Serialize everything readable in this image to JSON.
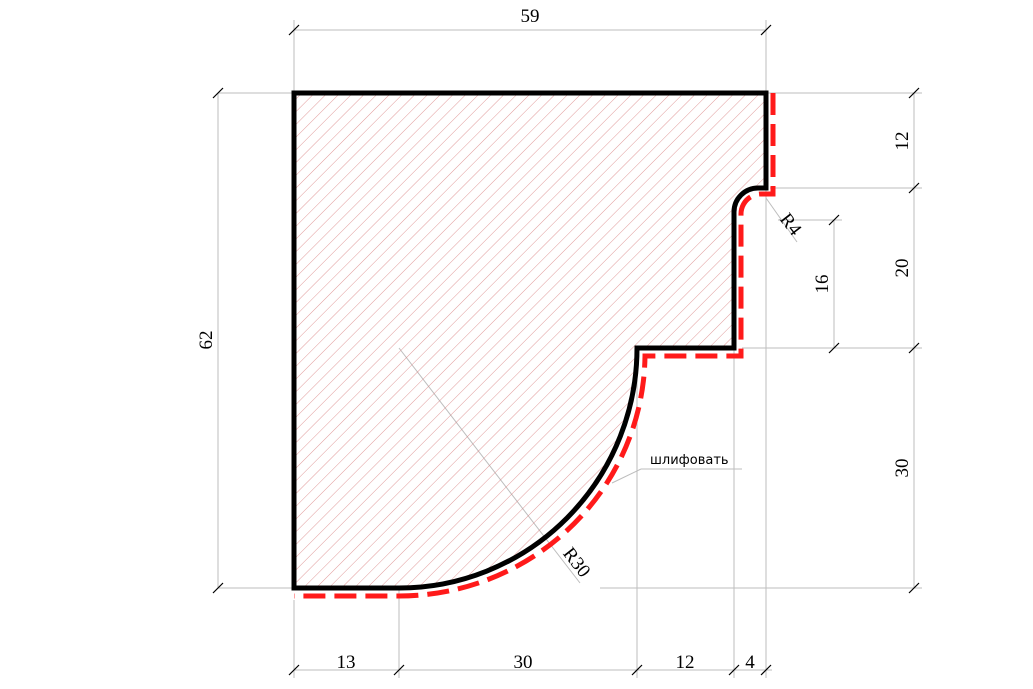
{
  "dimensions": {
    "overall_width": "59",
    "overall_height": "62",
    "right_segments": [
      "12",
      "20",
      "30"
    ],
    "inner_height": "16",
    "bottom_segments": [
      "13",
      "30",
      "12",
      "4"
    ]
  },
  "radii": {
    "large": "R30",
    "small": "R4"
  },
  "note": "шлифовать",
  "colors": {
    "outline": "#000000",
    "hatch": "#d98080",
    "dashed": "#ff1a1a",
    "dim_line": "#bdbdbd"
  }
}
